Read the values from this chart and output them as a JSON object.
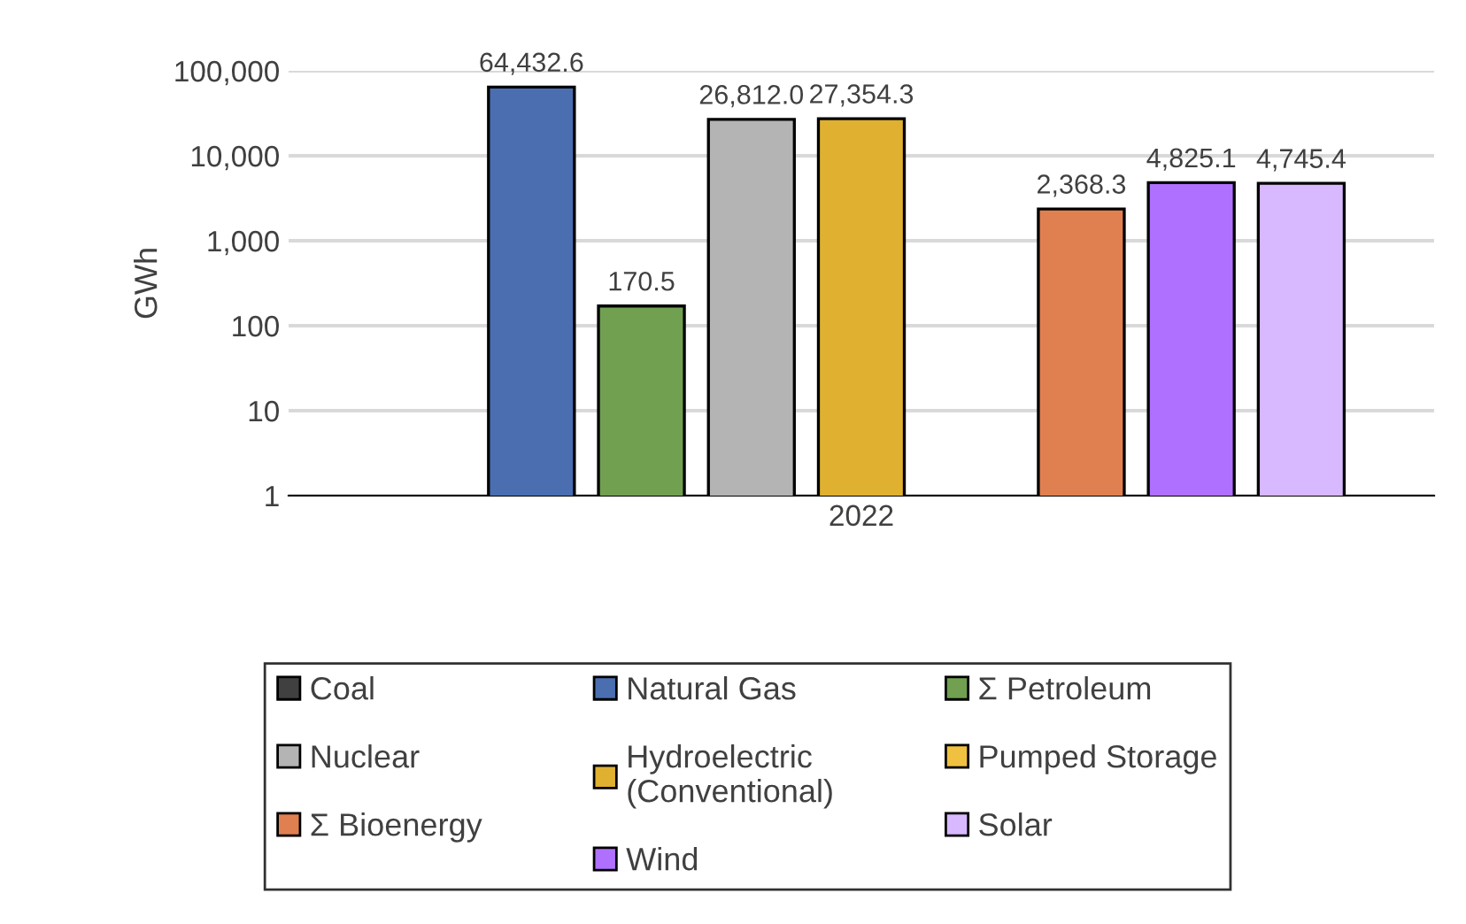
{
  "chart_data": {
    "type": "bar",
    "ylabel": "GWh",
    "categories": [
      "2022"
    ],
    "series": [
      {
        "name": "Coal",
        "color": "#404040",
        "values": [
          null
        ]
      },
      {
        "name": "Natural Gas",
        "color": "#4a6eb0",
        "values": [
          64432.6
        ],
        "value_labels": [
          "64,432.6"
        ]
      },
      {
        "name": "Σ Petroleum",
        "color": "#70a050",
        "values": [
          170.5
        ],
        "value_labels": [
          "170.5"
        ]
      },
      {
        "name": "Nuclear",
        "color": "#b4b4b4",
        "values": [
          26812.0
        ],
        "value_labels": [
          "26,812.0"
        ]
      },
      {
        "name": "Hydroelectric\n(Conventional)",
        "color": "#e0b030",
        "values": [
          27354.3
        ],
        "value_labels": [
          "27,354.3"
        ]
      },
      {
        "name": "Pumped Storage",
        "color": "#f0c040",
        "values": [
          null
        ]
      },
      {
        "name": "Σ Bioenergy",
        "color": "#e08050",
        "values": [
          2368.3
        ],
        "value_labels": [
          "2,368.3"
        ]
      },
      {
        "name": "Wind",
        "color": "#b070ff",
        "values": [
          4825.1
        ],
        "value_labels": [
          "4,825.1"
        ]
      },
      {
        "name": "Solar",
        "color": "#d8b8ff",
        "values": [
          4745.4
        ],
        "value_labels": [
          "4,745.4"
        ]
      }
    ],
    "log": true,
    "ylim": [
      1,
      100000
    ],
    "yticks": [
      {
        "value": 1,
        "label": "1"
      },
      {
        "value": 10,
        "label": "10"
      },
      {
        "value": 100,
        "label": "100"
      },
      {
        "value": 1000,
        "label": "1,000"
      },
      {
        "value": 10000,
        "label": "10,000"
      },
      {
        "value": 100000,
        "label": "100,000"
      }
    ],
    "grid": "y",
    "legend": "bottom"
  }
}
